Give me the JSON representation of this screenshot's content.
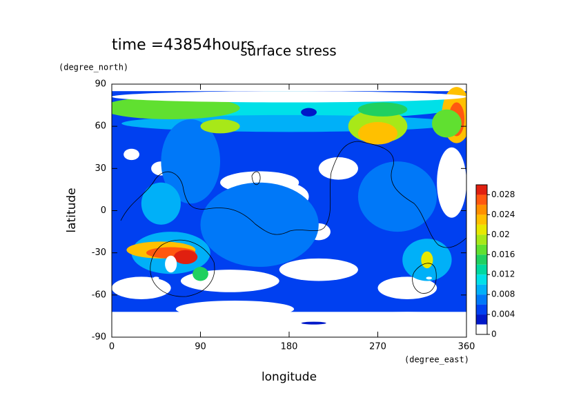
{
  "chart_data": {
    "type": "contour",
    "title": "surface stress",
    "subtitle": "time =43854hours",
    "x_label": "longitude",
    "x_unit": "(degree_east)",
    "y_label": "latitude",
    "y_unit": "(degree_north)",
    "xlim": [
      0,
      360
    ],
    "xticks": [
      0,
      90,
      180,
      270,
      360
    ],
    "ylim": [
      -90,
      90
    ],
    "yticks": [
      -90,
      -60,
      -30,
      0,
      30,
      60,
      90
    ],
    "colorbar": {
      "lim": [
        0,
        0.03
      ],
      "ticks": [
        0,
        0.004,
        0.008,
        0.012,
        0.016,
        0.02,
        0.024,
        0.028
      ],
      "levels": [
        0,
        0.002,
        0.004,
        0.006,
        0.008,
        0.01,
        0.012,
        0.014,
        0.016,
        0.018,
        0.02,
        0.022,
        0.024,
        0.026,
        0.028,
        0.03
      ],
      "colors": [
        "#ffffff",
        "#0018c8",
        "#0040f0",
        "#0078f8",
        "#00b0f8",
        "#00e0e8",
        "#00d8a0",
        "#20d060",
        "#60e030",
        "#a8e818",
        "#e8e800",
        "#ffc000",
        "#ff9000",
        "#ff5810",
        "#e02010"
      ]
    }
  }
}
